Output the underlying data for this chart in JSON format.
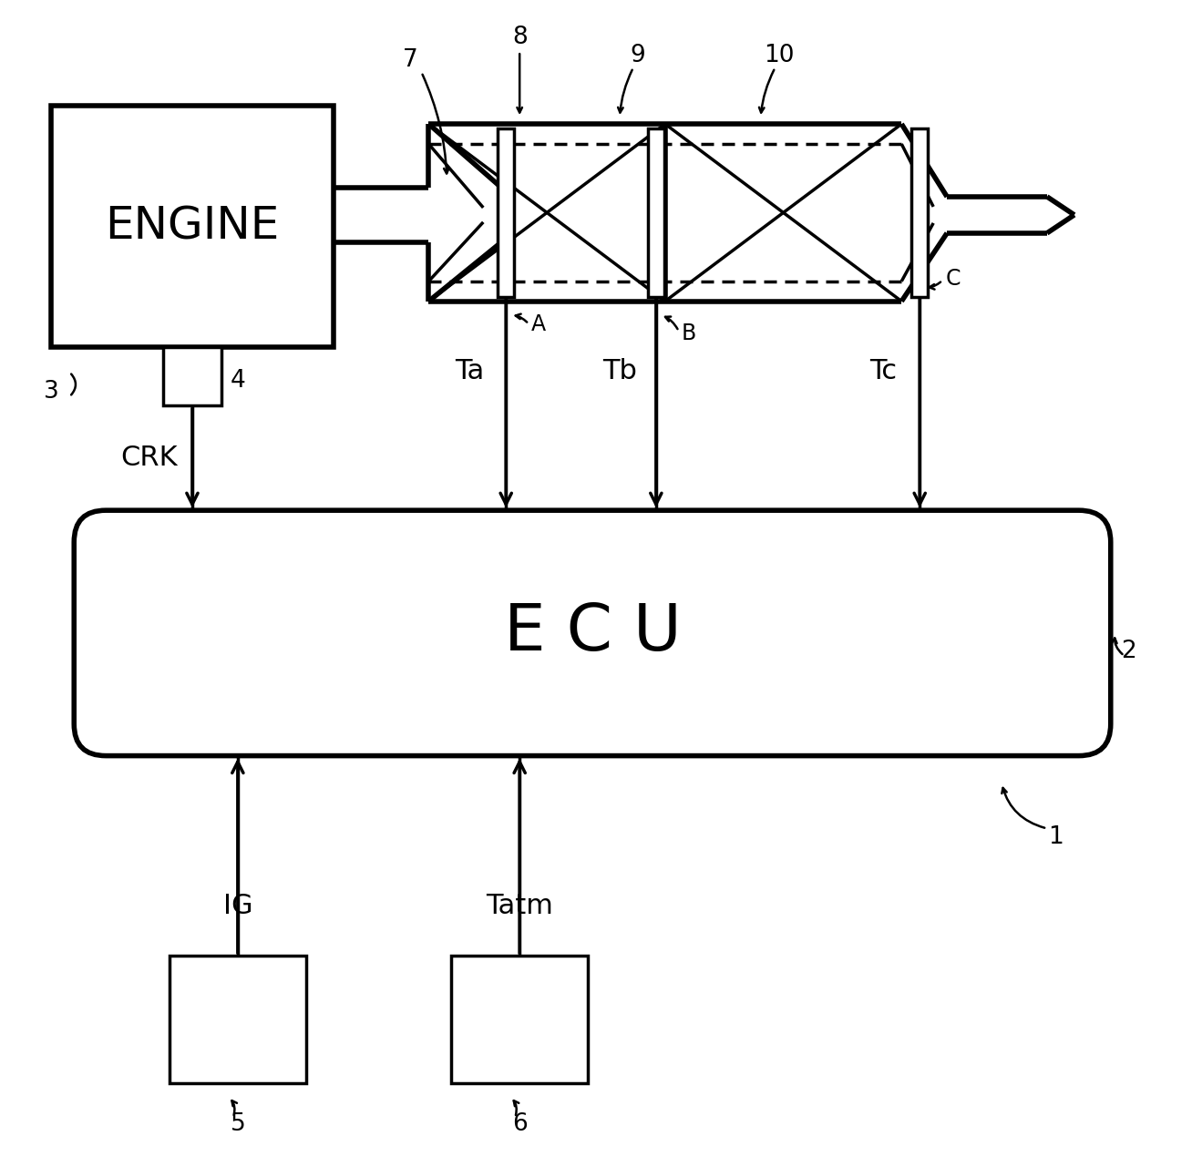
{
  "bg_color": "#ffffff",
  "line_color": "#000000",
  "fig_width": 13.08,
  "fig_height": 12.81,
  "engine_label": "ENGINE",
  "ecu_label": "E C U",
  "crk_label": "CRK",
  "ta_label": "Ta",
  "tb_label": "Tb",
  "tc_label": "Tc",
  "ig_label": "IG",
  "tatm_label": "Tatm",
  "ref_3": "3",
  "ref_4": "4",
  "ref_5": "5",
  "ref_6": "6",
  "ref_7": "7",
  "ref_8": "8",
  "ref_9": "9",
  "ref_10": "10",
  "ref_1": "1",
  "ref_2": "2",
  "ref_A": "A",
  "ref_B": "B",
  "ref_C": "C"
}
